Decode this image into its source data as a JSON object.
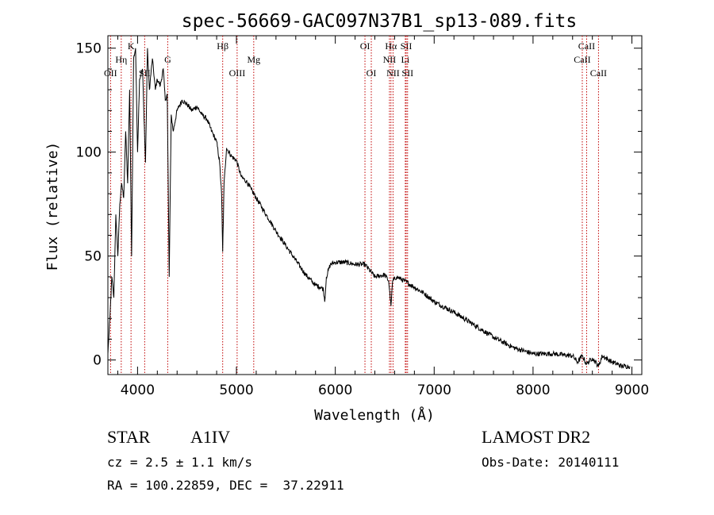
{
  "chart_data": {
    "type": "line",
    "title": "spec-56669-GAC097N37B1_sp13-089.fits",
    "xlabel": "Wavelength (Å)",
    "ylabel": "Flux (relative)",
    "xlim": [
      3700,
      9100
    ],
    "ylim": [
      -7,
      156
    ],
    "xticks": [
      4000,
      5000,
      6000,
      7000,
      8000,
      9000
    ],
    "yticks": [
      0,
      50,
      100,
      150
    ],
    "grid": false,
    "line_color": "#000000",
    "marker_color": "#c00000",
    "lines": [
      {
        "label": "OII",
        "x": 3727,
        "row": 3
      },
      {
        "label": "Hη",
        "x": 3835,
        "row": 2
      },
      {
        "label": "K",
        "x": 3934,
        "row": 1
      },
      {
        "label": "SII",
        "x": 4072,
        "row": 3
      },
      {
        "label": "G",
        "x": 4305,
        "row": 2
      },
      {
        "label": "Hβ",
        "x": 4861,
        "row": 1
      },
      {
        "label": "OIII",
        "x": 5007,
        "row": 3
      },
      {
        "label": "Mg",
        "x": 5175,
        "row": 2
      },
      {
        "label": "OI",
        "x": 6300,
        "row": 1
      },
      {
        "label": "OI",
        "x": 6364,
        "row": 3
      },
      {
        "label": "Hα",
        "x": 6563,
        "row": 1
      },
      {
        "label": "NII",
        "x": 6548,
        "row": 2
      },
      {
        "label": "NII",
        "x": 6584,
        "row": 3
      },
      {
        "label": "SII",
        "x": 6717,
        "row": 1
      },
      {
        "label": "Li",
        "x": 6708,
        "row": 2
      },
      {
        "label": "SII",
        "x": 6731,
        "row": 3
      },
      {
        "label": "CaII",
        "x": 8542,
        "row": 1
      },
      {
        "label": "CaII",
        "x": 8498,
        "row": 2
      },
      {
        "label": "CaII",
        "x": 8662,
        "row": 3
      }
    ],
    "spectrum": {
      "x": [
        3700,
        3720,
        3740,
        3760,
        3780,
        3800,
        3820,
        3840,
        3860,
        3880,
        3900,
        3920,
        3940,
        3960,
        3980,
        4000,
        4020,
        4050,
        4080,
        4100,
        4120,
        4150,
        4180,
        4200,
        4230,
        4260,
        4280,
        4300,
        4320,
        4340,
        4360,
        4400,
        4450,
        4500,
        4550,
        4600,
        4650,
        4700,
        4750,
        4800,
        4830,
        4850,
        4861,
        4875,
        4900,
        4950,
        5000,
        5050,
        5100,
        5150,
        5200,
        5300,
        5400,
        5500,
        5600,
        5700,
        5800,
        5850,
        5880,
        5893,
        5910,
        5950,
        6000,
        6100,
        6200,
        6300,
        6400,
        6500,
        6540,
        6563,
        6580,
        6620,
        6700,
        6800,
        6900,
        7000,
        7200,
        7400,
        7600,
        7800,
        8000,
        8200,
        8400,
        8450,
        8498,
        8542,
        8600,
        8662,
        8700,
        8800,
        8900,
        8980
      ],
      "y": [
        3,
        20,
        40,
        30,
        70,
        50,
        75,
        85,
        78,
        110,
        85,
        130,
        50,
        145,
        150,
        100,
        135,
        140,
        95,
        150,
        130,
        145,
        130,
        135,
        132,
        140,
        125,
        128,
        40,
        118,
        110,
        120,
        125,
        123,
        120,
        122,
        118,
        116,
        110,
        105,
        95,
        80,
        52,
        85,
        102,
        98,
        96,
        88,
        86,
        82,
        78,
        70,
        62,
        55,
        48,
        41,
        36,
        35,
        34,
        28,
        40,
        46,
        47,
        47,
        46,
        46,
        40,
        41,
        38,
        26,
        38,
        40,
        38,
        35,
        32,
        28,
        23,
        17,
        11,
        6,
        3,
        3,
        2,
        -1,
        2,
        -2,
        1,
        -3,
        2,
        -1,
        -3,
        -3
      ]
    }
  },
  "info": {
    "class": "STAR",
    "subclass": "A1IV",
    "survey": "LAMOST DR2",
    "cz": "cz = 2.5 ± 1.1 km/s",
    "obs_date": "Obs-Date: 20140111",
    "coords": "RA = 100.22859, DEC =  37.22911"
  }
}
